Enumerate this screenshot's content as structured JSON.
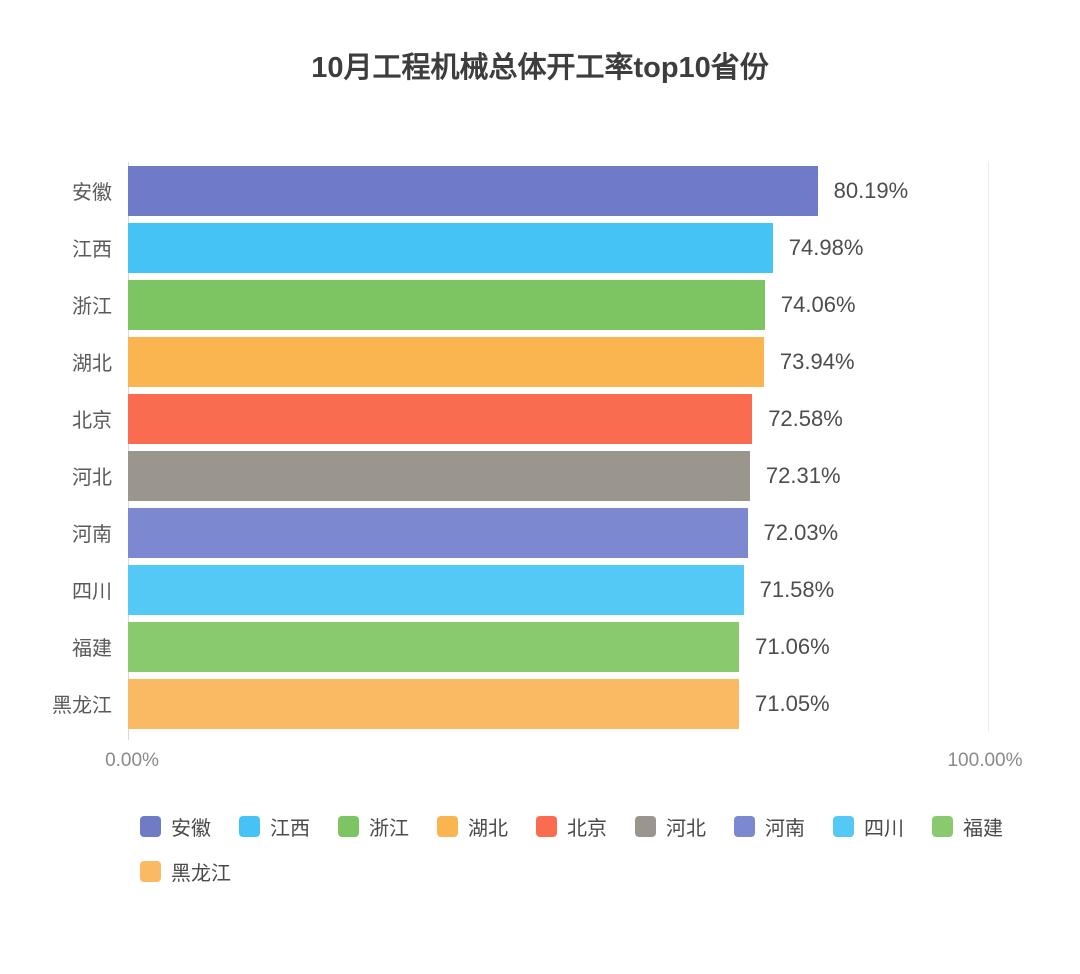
{
  "title": "10月工程机械总体开工率top10省份",
  "chart_data": {
    "type": "bar",
    "orientation": "horizontal",
    "title": "10月工程机械总体开工率top10省份",
    "categories": [
      "安徽",
      "江西",
      "浙江",
      "湖北",
      "北京",
      "河北",
      "河南",
      "四川",
      "福建",
      "黑龙江"
    ],
    "values": [
      80.19,
      74.98,
      74.06,
      73.94,
      72.58,
      72.31,
      72.03,
      71.58,
      71.06,
      71.05
    ],
    "value_labels": [
      "80.19%",
      "74.98%",
      "74.06%",
      "73.94%",
      "72.58%",
      "72.31%",
      "72.03%",
      "71.58%",
      "71.06%",
      "71.05%"
    ],
    "bar_colors": [
      "#6F7BC6",
      "#45C3F4",
      "#7DC463",
      "#FAB450",
      "#FA6C50",
      "#9A968E",
      "#7C88D0",
      "#54C9F6",
      "#8ACA6F",
      "#FABA64"
    ],
    "xlim": [
      0,
      100
    ],
    "x_tick_labels": [
      "0.00%",
      "100.00%"
    ],
    "grid": "single vertical gridline at 100%",
    "legend_position": "bottom",
    "legend": [
      {
        "label": "安徽",
        "color": "#6F7BC6"
      },
      {
        "label": "江西",
        "color": "#45C3F4"
      },
      {
        "label": "浙江",
        "color": "#7DC463"
      },
      {
        "label": "湖北",
        "color": "#FAB450"
      },
      {
        "label": "北京",
        "color": "#FA6C50"
      },
      {
        "label": "河北",
        "color": "#9A968E"
      },
      {
        "label": "河南",
        "color": "#7C88D0"
      },
      {
        "label": "四川",
        "color": "#54C9F6"
      },
      {
        "label": "福建",
        "color": "#8ACA6F"
      },
      {
        "label": "黑龙江",
        "color": "#FABA64"
      }
    ]
  }
}
